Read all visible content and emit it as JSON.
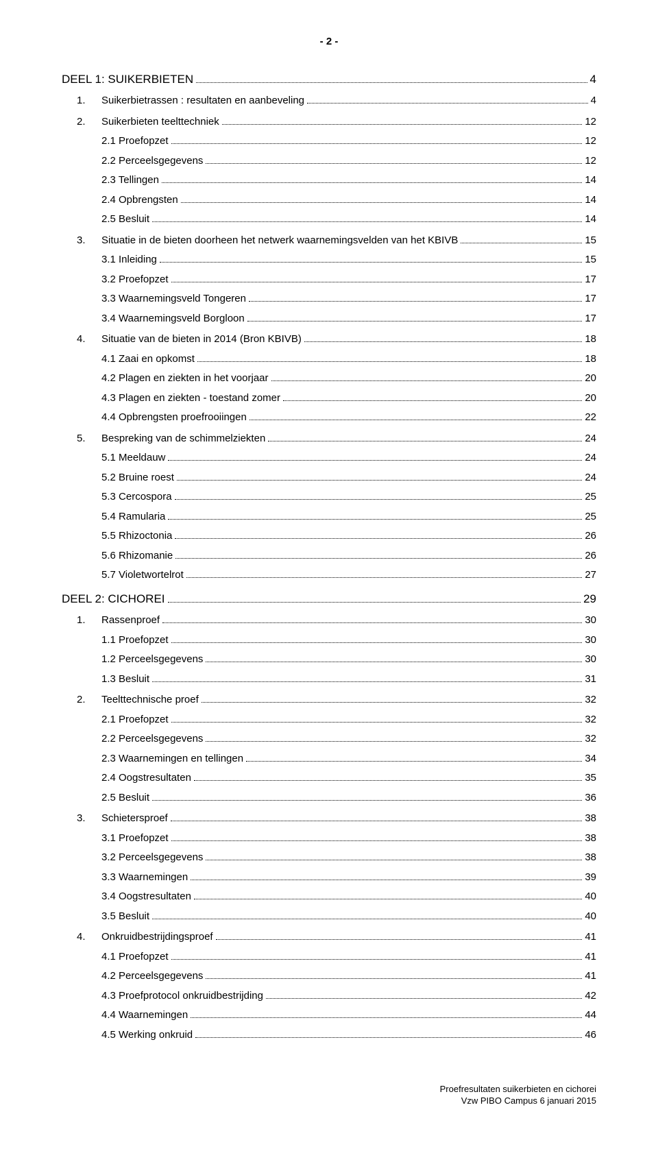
{
  "page_header": "- 2 -",
  "toc": [
    {
      "level": "part",
      "label": "DEEL 1: SUIKERBIETEN",
      "page": "4"
    },
    {
      "level": 1,
      "num": "1.",
      "label": "Suikerbietrassen : resultaten en aanbeveling",
      "page": "4"
    },
    {
      "level": 1,
      "num": "2.",
      "label": "Suikerbieten teelttechniek",
      "page": "12"
    },
    {
      "level": 2,
      "label": "2.1 Proefopzet",
      "page": "12"
    },
    {
      "level": 2,
      "label": "2.2 Perceelsgegevens",
      "page": "12"
    },
    {
      "level": 2,
      "label": "2.3 Tellingen",
      "page": "14"
    },
    {
      "level": 2,
      "label": "2.4 Opbrengsten",
      "page": "14"
    },
    {
      "level": 2,
      "label": "2.5 Besluit",
      "page": "14"
    },
    {
      "level": 1,
      "num": "3.",
      "label": "Situatie in de bieten doorheen het netwerk waarnemingsvelden van het KBIVB",
      "page": "15"
    },
    {
      "level": 2,
      "label": "3.1 Inleiding",
      "page": "15"
    },
    {
      "level": 2,
      "label": "3.2 Proefopzet",
      "page": "17"
    },
    {
      "level": 2,
      "label": "3.3 Waarnemingsveld Tongeren",
      "page": "17"
    },
    {
      "level": 2,
      "label": "3.4 Waarnemingsveld Borgloon",
      "page": "17"
    },
    {
      "level": 1,
      "num": "4.",
      "label": "Situatie van de bieten in 2014 (Bron KBIVB)",
      "page": "18"
    },
    {
      "level": 2,
      "label": "4.1 Zaai en opkomst",
      "page": "18"
    },
    {
      "level": 2,
      "label": "4.2 Plagen en ziekten in het voorjaar",
      "page": "20"
    },
    {
      "level": 2,
      "label": "4.3 Plagen en ziekten - toestand zomer",
      "page": "20"
    },
    {
      "level": 2,
      "label": "4.4 Opbrengsten proefrooiingen",
      "page": "22"
    },
    {
      "level": 1,
      "num": "5.",
      "label": "Bespreking van de schimmelziekten",
      "page": "24"
    },
    {
      "level": 2,
      "label": "5.1 Meeldauw",
      "page": "24"
    },
    {
      "level": 2,
      "label": "5.2 Bruine roest",
      "page": "24"
    },
    {
      "level": 2,
      "label": "5.3 Cercospora",
      "page": "25"
    },
    {
      "level": 2,
      "label": "5.4 Ramularia",
      "page": "25"
    },
    {
      "level": 2,
      "label": "5.5 Rhizoctonia",
      "page": "26"
    },
    {
      "level": 2,
      "label": "5.6 Rhizomanie",
      "page": "26"
    },
    {
      "level": 2,
      "label": "5.7 Violetwortelrot",
      "page": "27"
    },
    {
      "level": "part",
      "label": "DEEL 2: CICHOREI",
      "page": "29"
    },
    {
      "level": 1,
      "num": "1.",
      "label": "Rassenproef",
      "page": "30"
    },
    {
      "level": 2,
      "label": "1.1  Proefopzet",
      "page": "30"
    },
    {
      "level": 2,
      "label": "1.2 Perceelsgegevens",
      "page": "30"
    },
    {
      "level": 2,
      "label": "1.3 Besluit",
      "page": "31"
    },
    {
      "level": 1,
      "num": "2.",
      "label": "Teelttechnische proef",
      "page": "32"
    },
    {
      "level": 2,
      "label": "2.1 Proefopzet",
      "page": "32"
    },
    {
      "level": 2,
      "label": "2.2 Perceelsgegevens",
      "page": "32"
    },
    {
      "level": 2,
      "label": "2.3 Waarnemingen en tellingen",
      "page": "34"
    },
    {
      "level": 2,
      "label": "2.4 Oogstresultaten",
      "page": "35"
    },
    {
      "level": 2,
      "label": "2.5 Besluit",
      "page": "36"
    },
    {
      "level": 1,
      "num": "3.",
      "label": "Schietersproef",
      "page": "38"
    },
    {
      "level": 2,
      "label": "3.1 Proefopzet",
      "page": "38"
    },
    {
      "level": 2,
      "label": "3.2 Perceelsgegevens",
      "page": "38"
    },
    {
      "level": 2,
      "label": "3.3 Waarnemingen",
      "page": "39"
    },
    {
      "level": 2,
      "label": "3.4 Oogstresultaten",
      "page": "40"
    },
    {
      "level": 2,
      "label": "3.5 Besluit",
      "page": "40"
    },
    {
      "level": 1,
      "num": "4.",
      "label": "Onkruidbestrijdingsproef",
      "page": "41"
    },
    {
      "level": 2,
      "label": "4.1 Proefopzet",
      "page": "41"
    },
    {
      "level": 2,
      "label": "4.2 Perceelsgegevens",
      "page": "41"
    },
    {
      "level": 2,
      "label": "4.3 Proefprotocol onkruidbestrijding",
      "page": "42"
    },
    {
      "level": 2,
      "label": "4.4 Waarnemingen",
      "page": "44"
    },
    {
      "level": 2,
      "label": "4.5 Werking onkruid",
      "page": "46"
    }
  ],
  "footer": {
    "line1": "Proefresultaten suikerbieten en cichorei",
    "line2": "Vzw PIBO Campus 6 januari 2015"
  },
  "colors": {
    "background": "#ffffff",
    "text": "#000000",
    "dots": "#000000"
  },
  "typography": {
    "font_family": "Arial, Helvetica, sans-serif",
    "body_fontsize_pt": 11,
    "part_fontsize_pt": 13,
    "footer_fontsize_pt": 10
  }
}
